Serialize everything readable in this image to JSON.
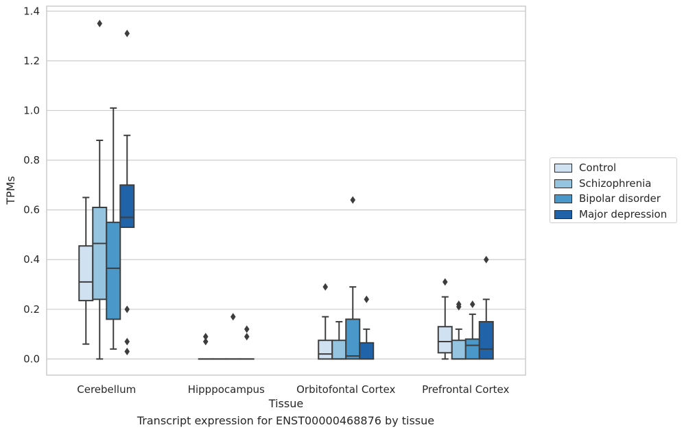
{
  "caption": "Transcript expression for ENST00000468876 by tissue",
  "chart_data": {
    "type": "box",
    "xlabel": "Tissue",
    "ylabel": "TPMs",
    "ylim": [
      -0.065,
      1.42
    ],
    "yticks": [
      0.0,
      0.2,
      0.4,
      0.6,
      0.8,
      1.0,
      1.2,
      1.4
    ],
    "ytick_labels": [
      "0.0",
      "0.2",
      "0.4",
      "0.6",
      "0.8",
      "1.0",
      "1.2",
      "1.4"
    ],
    "grid": "horizontal",
    "legend_position": "right",
    "categories": [
      "Cerebellum",
      "Hipppocampus",
      "Orbitofontal Cortex",
      "Prefrontal Cortex"
    ],
    "series": [
      {
        "name": "Control",
        "color": "#d0e1f2",
        "boxes": [
          {
            "whislo": 0.06,
            "q1": 0.235,
            "med": 0.31,
            "q3": 0.455,
            "whishi": 0.65,
            "fliers": []
          },
          {
            "whislo": 0.0,
            "q1": 0.0,
            "med": 0.0,
            "q3": 0.0,
            "whishi": 0.0,
            "fliers": [
              0.07,
              0.09
            ]
          },
          {
            "whislo": 0.0,
            "q1": 0.0,
            "med": 0.02,
            "q3": 0.075,
            "whishi": 0.17,
            "fliers": [
              0.29
            ]
          },
          {
            "whislo": 0.0,
            "q1": 0.025,
            "med": 0.07,
            "q3": 0.13,
            "whishi": 0.25,
            "fliers": [
              0.31
            ]
          }
        ]
      },
      {
        "name": "Schizophrenia",
        "color": "#94c4df",
        "boxes": [
          {
            "whislo": 0.0,
            "q1": 0.24,
            "med": 0.465,
            "q3": 0.61,
            "whishi": 0.88,
            "fliers": [
              1.35
            ]
          },
          {
            "whislo": 0.0,
            "q1": 0.0,
            "med": 0.0,
            "q3": 0.0,
            "whishi": 0.0,
            "fliers": []
          },
          {
            "whislo": 0.0,
            "q1": 0.0,
            "med": 0.0,
            "q3": 0.075,
            "whishi": 0.15,
            "fliers": []
          },
          {
            "whislo": 0.0,
            "q1": 0.0,
            "med": 0.0,
            "q3": 0.075,
            "whishi": 0.12,
            "fliers": [
              0.21,
              0.22
            ]
          }
        ]
      },
      {
        "name": "Bipolar disorder",
        "color": "#4a98c9",
        "boxes": [
          {
            "whislo": 0.04,
            "q1": 0.16,
            "med": 0.365,
            "q3": 0.55,
            "whishi": 1.01,
            "fliers": []
          },
          {
            "whislo": 0.0,
            "q1": 0.0,
            "med": 0.0,
            "q3": 0.0,
            "whishi": 0.0,
            "fliers": [
              0.17
            ]
          },
          {
            "whislo": 0.0,
            "q1": 0.0,
            "med": 0.012,
            "q3": 0.16,
            "whishi": 0.29,
            "fliers": [
              0.64
            ]
          },
          {
            "whislo": 0.0,
            "q1": 0.0,
            "med": 0.055,
            "q3": 0.08,
            "whishi": 0.18,
            "fliers": [
              0.22
            ]
          }
        ]
      },
      {
        "name": "Major depression",
        "color": "#2163a8",
        "boxes": [
          {
            "whislo": 0.53,
            "q1": 0.53,
            "med": 0.57,
            "q3": 0.7,
            "whishi": 0.9,
            "fliers": [
              0.03,
              0.07,
              0.2,
              1.31
            ]
          },
          {
            "whislo": 0.0,
            "q1": 0.0,
            "med": 0.0,
            "q3": 0.0,
            "whishi": 0.0,
            "fliers": [
              0.09,
              0.12
            ]
          },
          {
            "whislo": 0.0,
            "q1": 0.0,
            "med": 0.0,
            "q3": 0.065,
            "whishi": 0.12,
            "fliers": [
              0.24
            ]
          },
          {
            "whislo": 0.0,
            "q1": 0.0,
            "med": 0.04,
            "q3": 0.15,
            "whishi": 0.24,
            "fliers": [
              0.4
            ]
          }
        ]
      }
    ]
  }
}
